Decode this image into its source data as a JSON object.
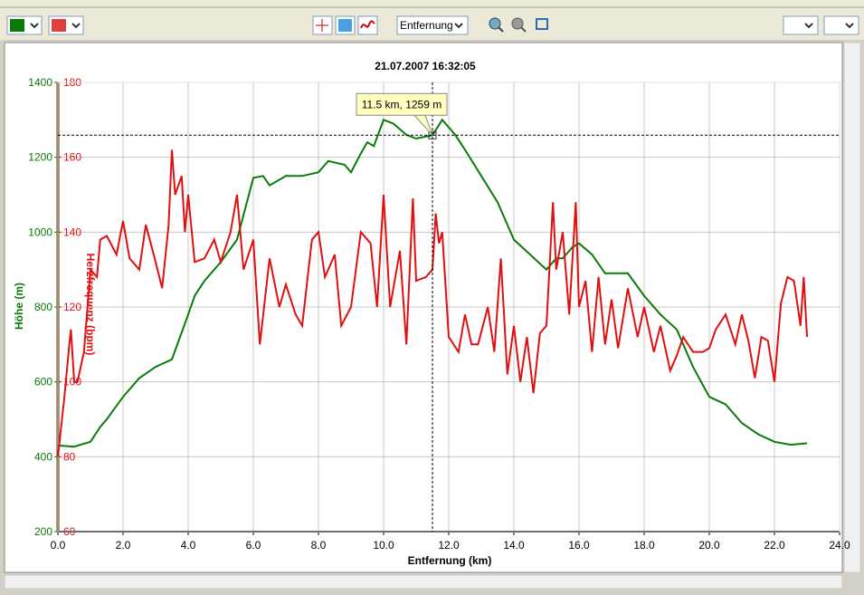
{
  "toolbar": {
    "view_select": "Entfernung"
  },
  "chart_data": {
    "type": "line",
    "title": "21.07.2007 16:32:05",
    "xlabel": "Entfernung (km)",
    "ylabel": "Höhe (m)",
    "y2label": "Herzfrequenz (bpm)",
    "annotation": "11.5 km, 1259 m",
    "crosshair": {
      "x": 11.5,
      "y": 1259
    },
    "grid": true,
    "xlim": [
      0,
      24
    ],
    "xticks": [
      {
        "value": 0,
        "label": "0.0"
      },
      {
        "value": 2,
        "label": "2.0"
      },
      {
        "value": 4,
        "label": "4.0"
      },
      {
        "value": 6,
        "label": "6.0"
      },
      {
        "value": 8,
        "label": "8.0"
      },
      {
        "value": 10,
        "label": "10.0"
      },
      {
        "value": 12,
        "label": "12.0"
      },
      {
        "value": 14,
        "label": "14.0"
      },
      {
        "value": 16,
        "label": "16.0"
      },
      {
        "value": 18,
        "label": "18.0"
      },
      {
        "value": 20,
        "label": "20.0"
      },
      {
        "value": 22,
        "label": "22.0"
      },
      {
        "value": 24,
        "label": "24.0"
      }
    ],
    "ylim": [
      200,
      1400
    ],
    "yticks": [
      200,
      400,
      600,
      800,
      1000,
      1200,
      1400
    ],
    "y2lim": [
      60,
      180
    ],
    "y2ticks": [
      60,
      80,
      100,
      120,
      140,
      160,
      180
    ],
    "series": [
      {
        "color": "#0a7a0a",
        "axis": "y",
        "x": [
          0,
          0.5,
          1.0,
          1.3,
          1.5,
          2.0,
          2.5,
          3.0,
          3.5,
          4.0,
          4.2,
          4.5,
          5.0,
          5.5,
          6.0,
          6.3,
          6.5,
          7.0,
          7.5,
          8.0,
          8.3,
          8.8,
          9.0,
          9.3,
          9.5,
          9.7,
          10.0,
          10.3,
          10.7,
          11.0,
          11.5,
          11.8,
          12.2,
          12.5,
          13.0,
          13.5,
          14.0,
          14.5,
          15.0,
          15.3,
          15.5,
          15.8,
          16.0,
          16.4,
          16.8,
          17.5,
          18.0,
          18.5,
          19.0,
          19.5,
          20.0,
          20.5,
          21.0,
          21.5,
          22.0,
          22.5,
          23.0
        ],
        "values": [
          430,
          427,
          440,
          480,
          500,
          560,
          610,
          640,
          660,
          780,
          830,
          870,
          920,
          980,
          1145,
          1150,
          1125,
          1150,
          1150,
          1160,
          1190,
          1180,
          1160,
          1210,
          1240,
          1230,
          1300,
          1290,
          1260,
          1250,
          1259,
          1300,
          1260,
          1220,
          1150,
          1080,
          980,
          940,
          900,
          930,
          930,
          960,
          970,
          940,
          890,
          890,
          830,
          780,
          740,
          640,
          560,
          540,
          490,
          460,
          440,
          432,
          436
        ]
      },
      {
        "color": "#e01010",
        "axis": "y2",
        "x": [
          0,
          0.1,
          0.2,
          0.35,
          0.4,
          0.5,
          0.6,
          0.8,
          1.0,
          1.2,
          1.3,
          1.5,
          1.8,
          2.0,
          2.2,
          2.5,
          2.7,
          3.0,
          3.2,
          3.4,
          3.5,
          3.6,
          3.8,
          3.9,
          4.0,
          4.2,
          4.5,
          4.8,
          5.0,
          5.3,
          5.5,
          5.7,
          6.0,
          6.2,
          6.5,
          6.8,
          7.0,
          7.3,
          7.5,
          7.8,
          8.0,
          8.2,
          8.5,
          8.7,
          9.0,
          9.3,
          9.6,
          9.8,
          10.0,
          10.2,
          10.5,
          10.7,
          10.9,
          11.0,
          11.3,
          11.5,
          11.6,
          11.7,
          11.8,
          12.0,
          12.3,
          12.5,
          12.7,
          12.9,
          13.2,
          13.4,
          13.6,
          13.8,
          14.0,
          14.2,
          14.4,
          14.6,
          14.8,
          15.0,
          15.2,
          15.3,
          15.5,
          15.7,
          15.9,
          16.0,
          16.2,
          16.4,
          16.6,
          16.8,
          17.0,
          17.2,
          17.5,
          17.8,
          18.0,
          18.3,
          18.5,
          18.8,
          19.0,
          19.2,
          19.5,
          19.8,
          20.0,
          20.2,
          20.5,
          20.8,
          21.0,
          21.2,
          21.4,
          21.6,
          21.8,
          22.0,
          22.2,
          22.4,
          22.6,
          22.8,
          22.9,
          23.0
        ],
        "values": [
          80,
          88,
          96,
          110,
          114,
          100,
          100,
          108,
          130,
          128,
          138,
          139,
          134,
          143,
          133,
          130,
          142,
          132,
          125,
          142,
          162,
          150,
          155,
          140,
          150,
          132,
          133,
          138,
          132,
          140,
          150,
          130,
          138,
          110,
          133,
          120,
          126,
          118,
          115,
          138,
          140,
          128,
          134,
          115,
          120,
          140,
          137,
          120,
          150,
          120,
          135,
          110,
          149,
          127,
          128,
          130,
          145,
          137,
          140,
          112,
          108,
          118,
          110,
          110,
          120,
          108,
          133,
          102,
          115,
          100,
          112,
          97,
          113,
          115,
          148,
          130,
          140,
          118,
          148,
          120,
          127,
          108,
          128,
          110,
          122,
          109,
          125,
          112,
          120,
          108,
          115,
          103,
          107,
          112,
          108,
          108,
          109,
          114,
          118,
          110,
          118,
          111,
          101,
          112,
          111,
          100,
          121,
          128,
          127,
          115,
          128,
          112
        ]
      }
    ]
  }
}
